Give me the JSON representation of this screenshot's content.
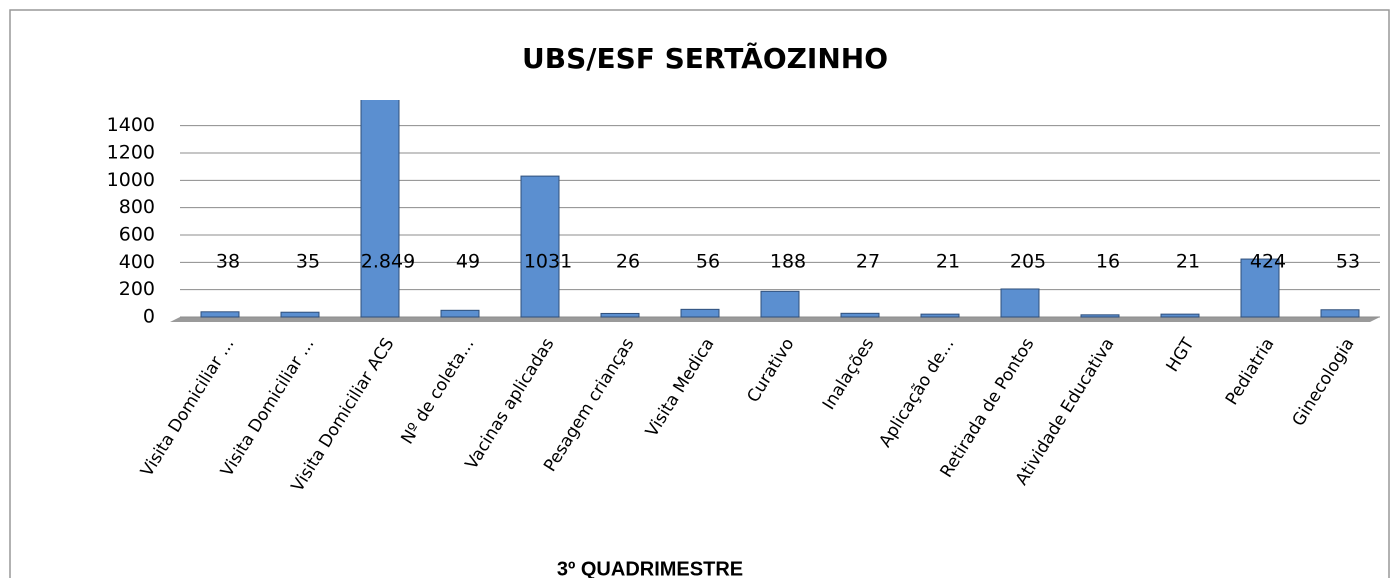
{
  "chart_data": {
    "type": "bar",
    "title": "UBS/ESF SERTÃOZINHO",
    "x_label": "3º QUADRIMESTRE",
    "categories": [
      "Visita Domiciliar ...",
      "Visita Domiciliar ...",
      "Visita Domiciliar ACS",
      "Nº de coleta...",
      "Vacinas aplicadas",
      "Pesagem crianças",
      "Visita Medica",
      "Curativo",
      "Inalações",
      "Aplicação de...",
      "Retirada de Pontos",
      "Atividade Educativa",
      "HGT",
      "Pediatria",
      "Ginecologia"
    ],
    "values": [
      38,
      35,
      2849,
      49,
      1031,
      26,
      56,
      188,
      27,
      21,
      205,
      16,
      21,
      424,
      53
    ],
    "value_labels": [
      "38",
      "35",
      "2.849",
      "49",
      "1031",
      "26",
      "56",
      "188",
      "27",
      "21",
      "205",
      "16",
      "21",
      "424",
      "53"
    ],
    "color": "#5b8fd0",
    "ylim": [
      0,
      1500
    ],
    "yticks": [
      0,
      200,
      400,
      600,
      800,
      1000,
      1200,
      1400
    ],
    "grid": true
  }
}
